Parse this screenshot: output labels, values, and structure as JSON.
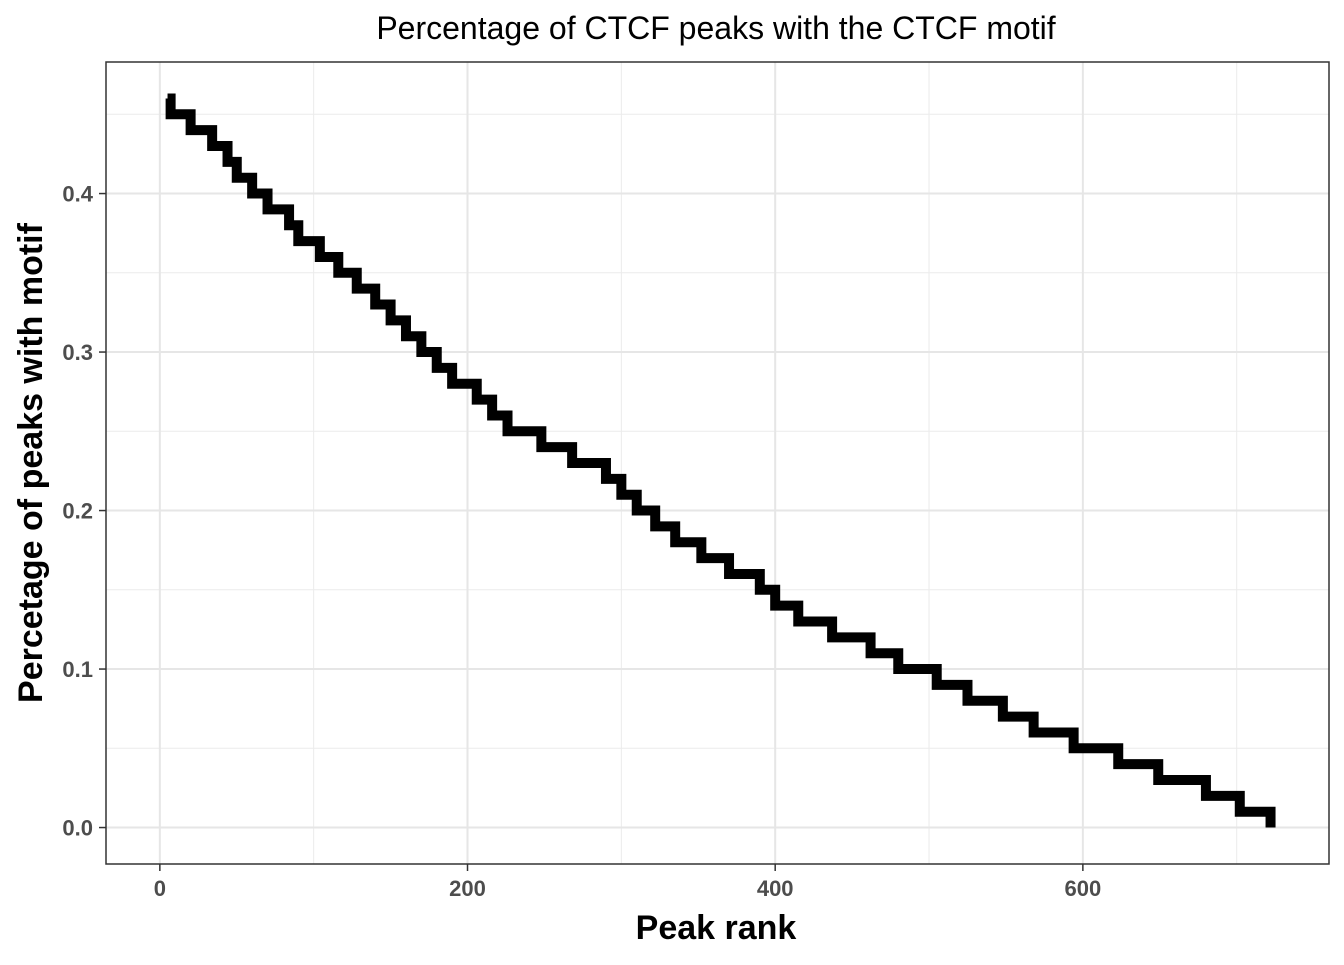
{
  "chart_data": {
    "type": "line",
    "title": "Percentage of CTCF peaks with the CTCF motif",
    "xlabel": "Peak rank",
    "ylabel": "Percetage of peaks with motif",
    "xlim": [
      -35,
      760
    ],
    "ylim": [
      -0.023,
      0.483
    ],
    "x_ticks": [
      0,
      200,
      400,
      600
    ],
    "x_tick_labels": [
      "0",
      "200",
      "400",
      "600"
    ],
    "y_ticks": [
      0.0,
      0.1,
      0.2,
      0.3,
      0.4
    ],
    "y_tick_labels": [
      "0.0",
      "0.1",
      "0.2",
      "0.3",
      "0.4"
    ],
    "x_minor_ticks": [
      100,
      300,
      500,
      700
    ],
    "y_minor_ticks": [
      0.05,
      0.15,
      0.25,
      0.35,
      0.45
    ],
    "grid": true,
    "legend": "none",
    "line_color": "#000000",
    "step": true,
    "series": [
      {
        "x": [
          5,
          7,
          12,
          20,
          28,
          34,
          38,
          44,
          50,
          60,
          66,
          70,
          77,
          84,
          90,
          97,
          104,
          110,
          116,
          122,
          128,
          133,
          140,
          145,
          150,
          155,
          160,
          165,
          170,
          175,
          180,
          185,
          190,
          200,
          206,
          211,
          216,
          221,
          226,
          245,
          248,
          262,
          268,
          275,
          290,
          300,
          310,
          322,
          335,
          352,
          370,
          390,
          400,
          415,
          437,
          462,
          480,
          505,
          525,
          548,
          568,
          594,
          623,
          649,
          680,
          702,
          722
        ],
        "values": [
          0.46,
          0.45,
          0.45,
          0.44,
          0.44,
          0.43,
          0.43,
          0.42,
          0.41,
          0.4,
          0.4,
          0.39,
          0.39,
          0.38,
          0.37,
          0.37,
          0.36,
          0.36,
          0.35,
          0.35,
          0.34,
          0.34,
          0.33,
          0.33,
          0.32,
          0.32,
          0.31,
          0.31,
          0.3,
          0.3,
          0.29,
          0.29,
          0.28,
          0.28,
          0.27,
          0.27,
          0.26,
          0.26,
          0.25,
          0.25,
          0.24,
          0.24,
          0.23,
          0.23,
          0.22,
          0.21,
          0.2,
          0.19,
          0.18,
          0.17,
          0.16,
          0.15,
          0.14,
          0.13,
          0.12,
          0.11,
          0.1,
          0.09,
          0.08,
          0.07,
          0.06,
          0.05,
          0.04,
          0.03,
          0.02,
          0.01,
          0.0
        ]
      }
    ]
  }
}
